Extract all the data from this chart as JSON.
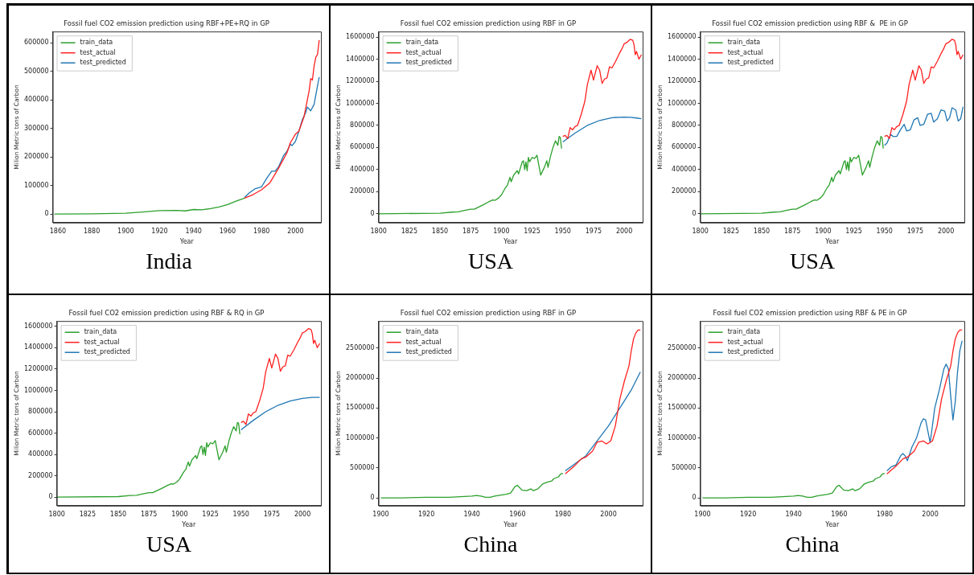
{
  "chart_data": [
    {
      "type": "line",
      "title": "Fossil fuel CO2 emission prediction using RBF+PE+RQ in GP",
      "xlabel": "Year",
      "ylabel": "Milion Metric tons of Carbon",
      "annotations": [
        "India"
      ],
      "xlim": [
        1857,
        2015
      ],
      "xticks": [
        1860,
        1880,
        1900,
        1920,
        1940,
        1960,
        1980,
        2000
      ],
      "ylim": [
        -30000,
        640000
      ],
      "yticks": [
        0,
        100000,
        200000,
        300000,
        400000,
        500000,
        600000
      ],
      "grid": false,
      "legend": "top left",
      "series": [
        {
          "name": "train_data",
          "color": "#2ca02c",
          "x": [
            1858,
            1860,
            1880,
            1900,
            1910,
            1920,
            1930,
            1935,
            1940,
            1945,
            1950,
            1955,
            1960,
            1965,
            1970
          ],
          "values": [
            0,
            0,
            1000,
            3000,
            7000,
            12000,
            13000,
            11000,
            16000,
            15000,
            19000,
            25000,
            33000,
            45000,
            56000
          ]
        },
        {
          "name": "test_actual",
          "color": "#ff2020",
          "x": [
            1970,
            1975,
            1980,
            1985,
            1990,
            1995,
            1997,
            2000,
            2002,
            2005,
            2008,
            2009,
            2010,
            2011,
            2012,
            2013,
            2014
          ],
          "values": [
            56000,
            68000,
            85000,
            110000,
            160000,
            215000,
            250000,
            280000,
            290000,
            340000,
            430000,
            475000,
            470000,
            520000,
            550000,
            560000,
            610000
          ]
        },
        {
          "name": "test_predicted",
          "color": "#1f77b4",
          "x": [
            1970,
            1973,
            1976,
            1980,
            1983,
            1986,
            1988,
            1990,
            1993,
            1995,
            1997,
            1998,
            2000,
            2002,
            2004,
            2006,
            2007,
            2009,
            2011,
            2013,
            2014
          ],
          "values": [
            58000,
            75000,
            88000,
            95000,
            125000,
            150000,
            150000,
            165000,
            205000,
            220000,
            245000,
            240000,
            255000,
            290000,
            330000,
            355000,
            375000,
            362000,
            385000,
            450000,
            480000
          ]
        }
      ]
    },
    {
      "type": "line",
      "title": "Fossil fuel CO2 emission prediction using RBF in GP",
      "xlabel": "Year",
      "ylabel": "Milion Metric tons of Carbon",
      "annotations": [
        "USA"
      ],
      "xlim": [
        1800,
        2015
      ],
      "xticks": [
        1800,
        1825,
        1850,
        1875,
        1900,
        1925,
        1950,
        1975,
        2000
      ],
      "ylim": [
        -80000,
        1650000
      ],
      "yticks": [
        0,
        200000,
        400000,
        600000,
        800000,
        1000000,
        1200000,
        1400000,
        1600000
      ],
      "grid": false,
      "legend": "top left",
      "series": [
        {
          "name": "train_data",
          "color": "#2ca02c",
          "x": [
            1800,
            1850,
            1860,
            1865,
            1870,
            1875,
            1878,
            1885,
            1890,
            1893,
            1895,
            1898,
            1900,
            1903,
            1905,
            1907,
            1908,
            1910,
            1913,
            1914,
            1917,
            1918,
            1919,
            1920,
            1921,
            1922,
            1923,
            1925,
            1927,
            1929,
            1932,
            1935,
            1937,
            1938,
            1940,
            1942,
            1944,
            1946,
            1947,
            1948,
            1949
          ],
          "values": [
            0,
            5000,
            15000,
            18000,
            30000,
            42000,
            42000,
            80000,
            110000,
            125000,
            122000,
            145000,
            170000,
            230000,
            260000,
            330000,
            290000,
            350000,
            390000,
            360000,
            470000,
            480000,
            400000,
            470000,
            390000,
            510000,
            470000,
            510000,
            500000,
            530000,
            350000,
            420000,
            480000,
            420000,
            520000,
            600000,
            660000,
            620000,
            700000,
            690000,
            590000
          ]
        },
        {
          "name": "test_actual",
          "color": "#ff2020",
          "x": [
            1950,
            1952,
            1954,
            1956,
            1958,
            1960,
            1962,
            1965,
            1968,
            1970,
            1973,
            1975,
            1978,
            1980,
            1982,
            1984,
            1986,
            1988,
            1990,
            1993,
            1996,
            1998,
            2000,
            2002,
            2005,
            2007,
            2008,
            2009,
            2010,
            2012,
            2013,
            2014
          ],
          "values": [
            700000,
            710000,
            680000,
            780000,
            760000,
            790000,
            800000,
            900000,
            1020000,
            1170000,
            1300000,
            1210000,
            1340000,
            1300000,
            1180000,
            1220000,
            1230000,
            1330000,
            1320000,
            1380000,
            1450000,
            1490000,
            1540000,
            1550000,
            1580000,
            1570000,
            1530000,
            1440000,
            1470000,
            1400000,
            1420000,
            1440000
          ]
        },
        {
          "name": "test_predicted",
          "color": "#1f77b4",
          "x": [
            1950,
            1960,
            1970,
            1980,
            1990,
            2000,
            2005,
            2010,
            2014
          ],
          "values": [
            650000,
            730000,
            800000,
            845000,
            870000,
            875000,
            873000,
            867000,
            860000
          ]
        }
      ]
    },
    {
      "type": "line",
      "title": "Fossil fuel CO2 emission prediction using RBF &  PE in GP",
      "xlabel": "Year",
      "ylabel": "Milion Metric tons of Carbon",
      "annotations": [
        "USA"
      ],
      "xlim": [
        1800,
        2015
      ],
      "xticks": [
        1800,
        1825,
        1850,
        1875,
        1900,
        1925,
        1950,
        1975,
        2000
      ],
      "ylim": [
        -80000,
        1650000
      ],
      "yticks": [
        0,
        200000,
        400000,
        600000,
        800000,
        1000000,
        1200000,
        1400000,
        1600000
      ],
      "grid": false,
      "legend": "top left",
      "series": [
        {
          "name": "train_data",
          "color": "#2ca02c",
          "x": [
            1800,
            1850,
            1860,
            1865,
            1870,
            1875,
            1878,
            1885,
            1890,
            1893,
            1895,
            1898,
            1900,
            1903,
            1905,
            1907,
            1908,
            1910,
            1913,
            1914,
            1917,
            1918,
            1919,
            1920,
            1921,
            1922,
            1923,
            1925,
            1927,
            1929,
            1932,
            1935,
            1937,
            1938,
            1940,
            1942,
            1944,
            1946,
            1947,
            1948,
            1949
          ],
          "values": [
            0,
            5000,
            15000,
            18000,
            30000,
            42000,
            42000,
            80000,
            110000,
            125000,
            122000,
            145000,
            170000,
            230000,
            260000,
            330000,
            290000,
            350000,
            390000,
            360000,
            470000,
            480000,
            400000,
            470000,
            390000,
            510000,
            470000,
            510000,
            500000,
            530000,
            350000,
            420000,
            480000,
            420000,
            520000,
            600000,
            660000,
            620000,
            700000,
            690000,
            590000
          ]
        },
        {
          "name": "test_actual",
          "color": "#ff2020",
          "x": [
            1950,
            1952,
            1954,
            1956,
            1958,
            1960,
            1962,
            1965,
            1968,
            1970,
            1973,
            1975,
            1978,
            1980,
            1982,
            1984,
            1986,
            1988,
            1990,
            1993,
            1996,
            1998,
            2000,
            2002,
            2005,
            2007,
            2008,
            2009,
            2010,
            2012,
            2013,
            2014
          ],
          "values": [
            700000,
            710000,
            680000,
            780000,
            760000,
            790000,
            800000,
            900000,
            1020000,
            1170000,
            1300000,
            1210000,
            1340000,
            1300000,
            1180000,
            1220000,
            1230000,
            1330000,
            1320000,
            1380000,
            1450000,
            1490000,
            1540000,
            1550000,
            1580000,
            1570000,
            1530000,
            1440000,
            1470000,
            1400000,
            1420000,
            1440000
          ]
        },
        {
          "name": "test_predicted",
          "color": "#1f77b4",
          "x": [
            1950,
            1952,
            1955,
            1957,
            1960,
            1963,
            1966,
            1968,
            1971,
            1974,
            1977,
            1979,
            1982,
            1985,
            1988,
            1990,
            1993,
            1996,
            1999,
            2001,
            2003,
            2005,
            2008,
            2010,
            2012,
            2014
          ],
          "values": [
            620000,
            640000,
            720000,
            700000,
            700000,
            760000,
            810000,
            750000,
            760000,
            850000,
            870000,
            800000,
            810000,
            900000,
            910000,
            830000,
            860000,
            940000,
            930000,
            840000,
            870000,
            960000,
            940000,
            840000,
            860000,
            970000
          ]
        }
      ]
    },
    {
      "type": "line",
      "title": "Fossil fuel CO2 emission prediction using RBF & RQ in GP",
      "xlabel": "Year",
      "ylabel": "Milion Metric tons of Carbon",
      "annotations": [
        "USA"
      ],
      "xlim": [
        1800,
        2015
      ],
      "xticks": [
        1800,
        1825,
        1850,
        1875,
        1900,
        1925,
        1950,
        1975,
        2000
      ],
      "ylim": [
        -80000,
        1650000
      ],
      "yticks": [
        0,
        200000,
        400000,
        600000,
        800000,
        1000000,
        1200000,
        1400000,
        1600000
      ],
      "grid": false,
      "legend": "top left",
      "series": [
        {
          "name": "train_data",
          "color": "#2ca02c",
          "x": [
            1800,
            1850,
            1860,
            1865,
            1870,
            1875,
            1878,
            1885,
            1890,
            1893,
            1895,
            1898,
            1900,
            1903,
            1905,
            1907,
            1908,
            1910,
            1913,
            1914,
            1917,
            1918,
            1919,
            1920,
            1921,
            1922,
            1923,
            1925,
            1927,
            1929,
            1932,
            1935,
            1937,
            1938,
            1940,
            1942,
            1944,
            1946,
            1947,
            1948,
            1949
          ],
          "values": [
            0,
            5000,
            15000,
            18000,
            30000,
            42000,
            42000,
            80000,
            110000,
            125000,
            122000,
            145000,
            170000,
            230000,
            260000,
            330000,
            290000,
            350000,
            390000,
            360000,
            470000,
            480000,
            400000,
            470000,
            390000,
            510000,
            470000,
            510000,
            500000,
            530000,
            350000,
            420000,
            480000,
            420000,
            520000,
            600000,
            660000,
            620000,
            700000,
            690000,
            590000
          ]
        },
        {
          "name": "test_actual",
          "color": "#ff2020",
          "x": [
            1950,
            1952,
            1954,
            1956,
            1958,
            1960,
            1962,
            1965,
            1968,
            1970,
            1973,
            1975,
            1978,
            1980,
            1982,
            1984,
            1986,
            1988,
            1990,
            1993,
            1996,
            1998,
            2000,
            2002,
            2005,
            2007,
            2008,
            2009,
            2010,
            2012,
            2013,
            2014
          ],
          "values": [
            700000,
            710000,
            680000,
            780000,
            760000,
            790000,
            800000,
            900000,
            1020000,
            1170000,
            1300000,
            1210000,
            1340000,
            1300000,
            1180000,
            1220000,
            1230000,
            1330000,
            1320000,
            1380000,
            1450000,
            1490000,
            1540000,
            1550000,
            1580000,
            1570000,
            1530000,
            1440000,
            1470000,
            1400000,
            1420000,
            1440000
          ]
        },
        {
          "name": "test_predicted",
          "color": "#1f77b4",
          "x": [
            1950,
            1960,
            1970,
            1980,
            1990,
            2000,
            2008,
            2014
          ],
          "values": [
            630000,
            720000,
            800000,
            860000,
            900000,
            925000,
            935000,
            935000
          ]
        }
      ]
    },
    {
      "type": "line",
      "title": "Fossil fuel CO2 emission prediction using RBF in GP",
      "xlabel": "Year",
      "ylabel": "Milion Metric tons of Carbon",
      "annotations": [
        "China"
      ],
      "xlim": [
        1899,
        2015
      ],
      "xticks": [
        1900,
        1920,
        1940,
        1960,
        1980,
        2000
      ],
      "ylim": [
        -130000,
        2950000
      ],
      "yticks": [
        0,
        500000,
        1000000,
        1500000,
        2000000,
        2500000
      ],
      "grid": false,
      "legend": "top left",
      "series": [
        {
          "name": "train_data",
          "color": "#2ca02c",
          "x": [
            1900,
            1910,
            1920,
            1930,
            1935,
            1940,
            1942,
            1944,
            1946,
            1948,
            1950,
            1955,
            1957,
            1959,
            1960,
            1962,
            1964,
            1966,
            1967,
            1969,
            1971,
            1973,
            1975,
            1976,
            1978,
            1979,
            1980
          ],
          "values": [
            0,
            0,
            10000,
            10000,
            20000,
            30000,
            40000,
            30000,
            10000,
            10000,
            30000,
            60000,
            80000,
            190000,
            210000,
            130000,
            120000,
            150000,
            120000,
            150000,
            230000,
            260000,
            280000,
            320000,
            350000,
            400000,
            410000
          ]
        },
        {
          "name": "test_actual",
          "color": "#ff2020",
          "x": [
            1981,
            1985,
            1988,
            1990,
            1993,
            1995,
            1997,
            1999,
            2001,
            2003,
            2005,
            2007,
            2009,
            2010,
            2011,
            2012,
            2013,
            2014
          ],
          "values": [
            400000,
            530000,
            650000,
            680000,
            780000,
            930000,
            950000,
            900000,
            950000,
            1200000,
            1650000,
            1950000,
            2200000,
            2450000,
            2650000,
            2750000,
            2800000,
            2800000
          ]
        },
        {
          "name": "test_predicted",
          "color": "#1f77b4",
          "x": [
            1981,
            1990,
            2000,
            2005,
            2010,
            2014
          ],
          "values": [
            450000,
            700000,
            1200000,
            1500000,
            1800000,
            2100000
          ]
        }
      ]
    },
    {
      "type": "line",
      "title": "Fossil fuel CO2 emission prediction using RBF & PE in GP",
      "xlabel": "Year",
      "ylabel": "Milion Metric tons of Carbon",
      "annotations": [
        "China"
      ],
      "xlim": [
        1899,
        2015
      ],
      "xticks": [
        1900,
        1920,
        1940,
        1960,
        1980,
        2000
      ],
      "ylim": [
        -130000,
        2950000
      ],
      "yticks": [
        0,
        500000,
        1000000,
        1500000,
        2000000,
        2500000
      ],
      "grid": false,
      "legend": "top left",
      "series": [
        {
          "name": "train_data",
          "color": "#2ca02c",
          "x": [
            1900,
            1910,
            1920,
            1930,
            1935,
            1940,
            1942,
            1944,
            1946,
            1948,
            1950,
            1955,
            1957,
            1959,
            1960,
            1962,
            1964,
            1966,
            1967,
            1969,
            1971,
            1973,
            1975,
            1976,
            1978,
            1979,
            1980
          ],
          "values": [
            0,
            0,
            10000,
            10000,
            20000,
            30000,
            40000,
            30000,
            10000,
            10000,
            30000,
            60000,
            80000,
            190000,
            210000,
            130000,
            120000,
            150000,
            120000,
            150000,
            230000,
            260000,
            280000,
            320000,
            350000,
            400000,
            410000
          ]
        },
        {
          "name": "test_actual",
          "color": "#ff2020",
          "x": [
            1981,
            1985,
            1988,
            1990,
            1993,
            1995,
            1997,
            1999,
            2001,
            2003,
            2005,
            2007,
            2009,
            2010,
            2011,
            2012,
            2013,
            2014
          ],
          "values": [
            400000,
            530000,
            650000,
            680000,
            780000,
            930000,
            950000,
            900000,
            950000,
            1200000,
            1650000,
            1950000,
            2200000,
            2450000,
            2650000,
            2750000,
            2800000,
            2800000
          ]
        },
        {
          "name": "test_predicted",
          "color": "#1f77b4",
          "x": [
            1981,
            1983,
            1985,
            1987,
            1988,
            1989,
            1990,
            1992,
            1994,
            1996,
            1997,
            1998,
            2000,
            2002,
            2004,
            2006,
            2007,
            2008,
            2009,
            2010,
            2011,
            2012,
            2013,
            2014
          ],
          "values": [
            450000,
            520000,
            550000,
            700000,
            740000,
            700000,
            620000,
            850000,
            1000000,
            1250000,
            1320000,
            1300000,
            920000,
            1500000,
            1800000,
            2150000,
            2230000,
            2150000,
            1700000,
            1300000,
            1600000,
            2100000,
            2450000,
            2620000
          ]
        }
      ]
    }
  ]
}
